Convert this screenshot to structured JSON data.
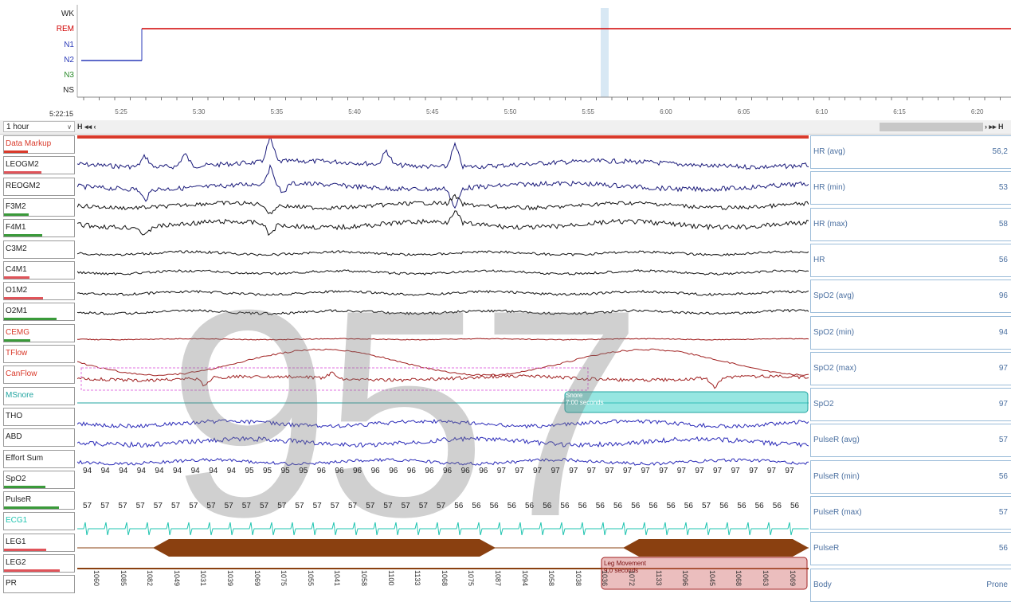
{
  "hypnogram": {
    "stages": [
      "WK",
      "REM",
      "N1",
      "N2",
      "N3",
      "NS"
    ],
    "stage_colors": [
      "#333333",
      "#d10000",
      "#2a3ab8",
      "#2a3ab8",
      "#2a8a2a",
      "#333333"
    ],
    "clock": "5:22:15",
    "time_ticks": [
      "5:25",
      "5:30",
      "5:35",
      "5:40",
      "5:45",
      "5:50",
      "5:55",
      "6:00",
      "6:05",
      "6:10",
      "6:15",
      "6:20"
    ]
  },
  "nav": {
    "duration": "1 hour",
    "prev_buttons": "H ◂◂ ‹",
    "next_buttons": "› ▸▸ H"
  },
  "channels": [
    {
      "label": "Data Markup",
      "color": "#d93a2b",
      "bar": "#d93a2b"
    },
    {
      "label": "LEOGM2",
      "color": "#222",
      "bar": "#e0545a"
    },
    {
      "label": "REOGM2",
      "color": "#222",
      "bar": ""
    },
    {
      "label": "F3M2",
      "color": "#222",
      "bar": "#3a9a3a"
    },
    {
      "label": "F4M1",
      "color": "#222",
      "bar": "#3a9a3a"
    },
    {
      "label": "C3M2",
      "color": "#222",
      "bar": ""
    },
    {
      "label": "C4M1",
      "color": "#222",
      "bar": "#e0545a"
    },
    {
      "label": "O1M2",
      "color": "#222",
      "bar": "#e0545a"
    },
    {
      "label": "O2M1",
      "color": "#222",
      "bar": "#3a9a3a"
    },
    {
      "label": "CEMG",
      "color": "#d93a2b",
      "bar": "#3a9a3a"
    },
    {
      "label": "TFlow",
      "color": "#d93a2b",
      "bar": ""
    },
    {
      "label": "CanFlow",
      "color": "#d93a2b",
      "bar": ""
    },
    {
      "label": "MSnore",
      "color": "#20a4a0",
      "bar": ""
    },
    {
      "label": "THO",
      "color": "#222",
      "bar": ""
    },
    {
      "label": "ABD",
      "color": "#222",
      "bar": ""
    },
    {
      "label": "Effort Sum",
      "color": "#222",
      "bar": ""
    },
    {
      "label": "SpO2",
      "color": "#222",
      "bar": "#3a9a3a"
    },
    {
      "label": "PulseR",
      "color": "#222",
      "bar": "#3a9a3a"
    },
    {
      "label": "ECG1",
      "color": "#20c4b0",
      "bar": ""
    },
    {
      "label": "LEG1",
      "color": "#222",
      "bar": "#e0545a"
    },
    {
      "label": "LEG2",
      "color": "#222",
      "bar": "#e0545a"
    },
    {
      "label": "PR",
      "color": "#222",
      "bar": ""
    }
  ],
  "stats": [
    {
      "name": "HR (avg)",
      "value": "56,2"
    },
    {
      "name": "HR (min)",
      "value": "53"
    },
    {
      "name": "HR (max)",
      "value": "58"
    },
    {
      "name": "HR",
      "value": "56"
    },
    {
      "name": "SpO2 (avg)",
      "value": "96"
    },
    {
      "name": "SpO2 (min)",
      "value": "94"
    },
    {
      "name": "SpO2 (max)",
      "value": "97"
    },
    {
      "name": "SpO2",
      "value": "97"
    },
    {
      "name": "PulseR (avg)",
      "value": "57"
    },
    {
      "name": "PulseR (min)",
      "value": "56"
    },
    {
      "name": "PulseR (max)",
      "value": "57"
    },
    {
      "name": "PulseR",
      "value": "56"
    },
    {
      "name": "Body",
      "value": "Prone"
    }
  ],
  "spo2_values": [
    "94",
    "94",
    "94",
    "94",
    "94",
    "94",
    "94",
    "94",
    "94",
    "95",
    "95",
    "95",
    "95",
    "96",
    "96",
    "96",
    "96",
    "96",
    "96",
    "96",
    "96",
    "96",
    "96",
    "97",
    "97",
    "97",
    "97",
    "97",
    "97",
    "97",
    "97",
    "97",
    "97",
    "97",
    "97",
    "97",
    "97",
    "97",
    "97",
    "97"
  ],
  "pulse_values": [
    "57",
    "57",
    "57",
    "57",
    "57",
    "57",
    "57",
    "57",
    "57",
    "57",
    "57",
    "57",
    "57",
    "57",
    "57",
    "57",
    "57",
    "57",
    "57",
    "57",
    "57",
    "56",
    "56",
    "56",
    "56",
    "56",
    "56",
    "56",
    "56",
    "56",
    "56",
    "56",
    "56",
    "56",
    "56",
    "57",
    "56",
    "56",
    "56",
    "56",
    "56"
  ],
  "leg_numbers": [
    "1060",
    "1085",
    "1082",
    "1049",
    "1031",
    "1039",
    "1069",
    "1075",
    "1055",
    "1041",
    "1058",
    "1100",
    "1133",
    "1068",
    "1075",
    "1087",
    "1094",
    "1058",
    "1038",
    "1036",
    "1072",
    "1133",
    "1096",
    "1045",
    "1068",
    "1063",
    "1069"
  ],
  "events": {
    "snore_label": "Snore",
    "snore_dur": "7:00 seconds",
    "leg_label": "Leg Movement",
    "leg_dur": "9,0 seconds"
  },
  "watermark": "957"
}
